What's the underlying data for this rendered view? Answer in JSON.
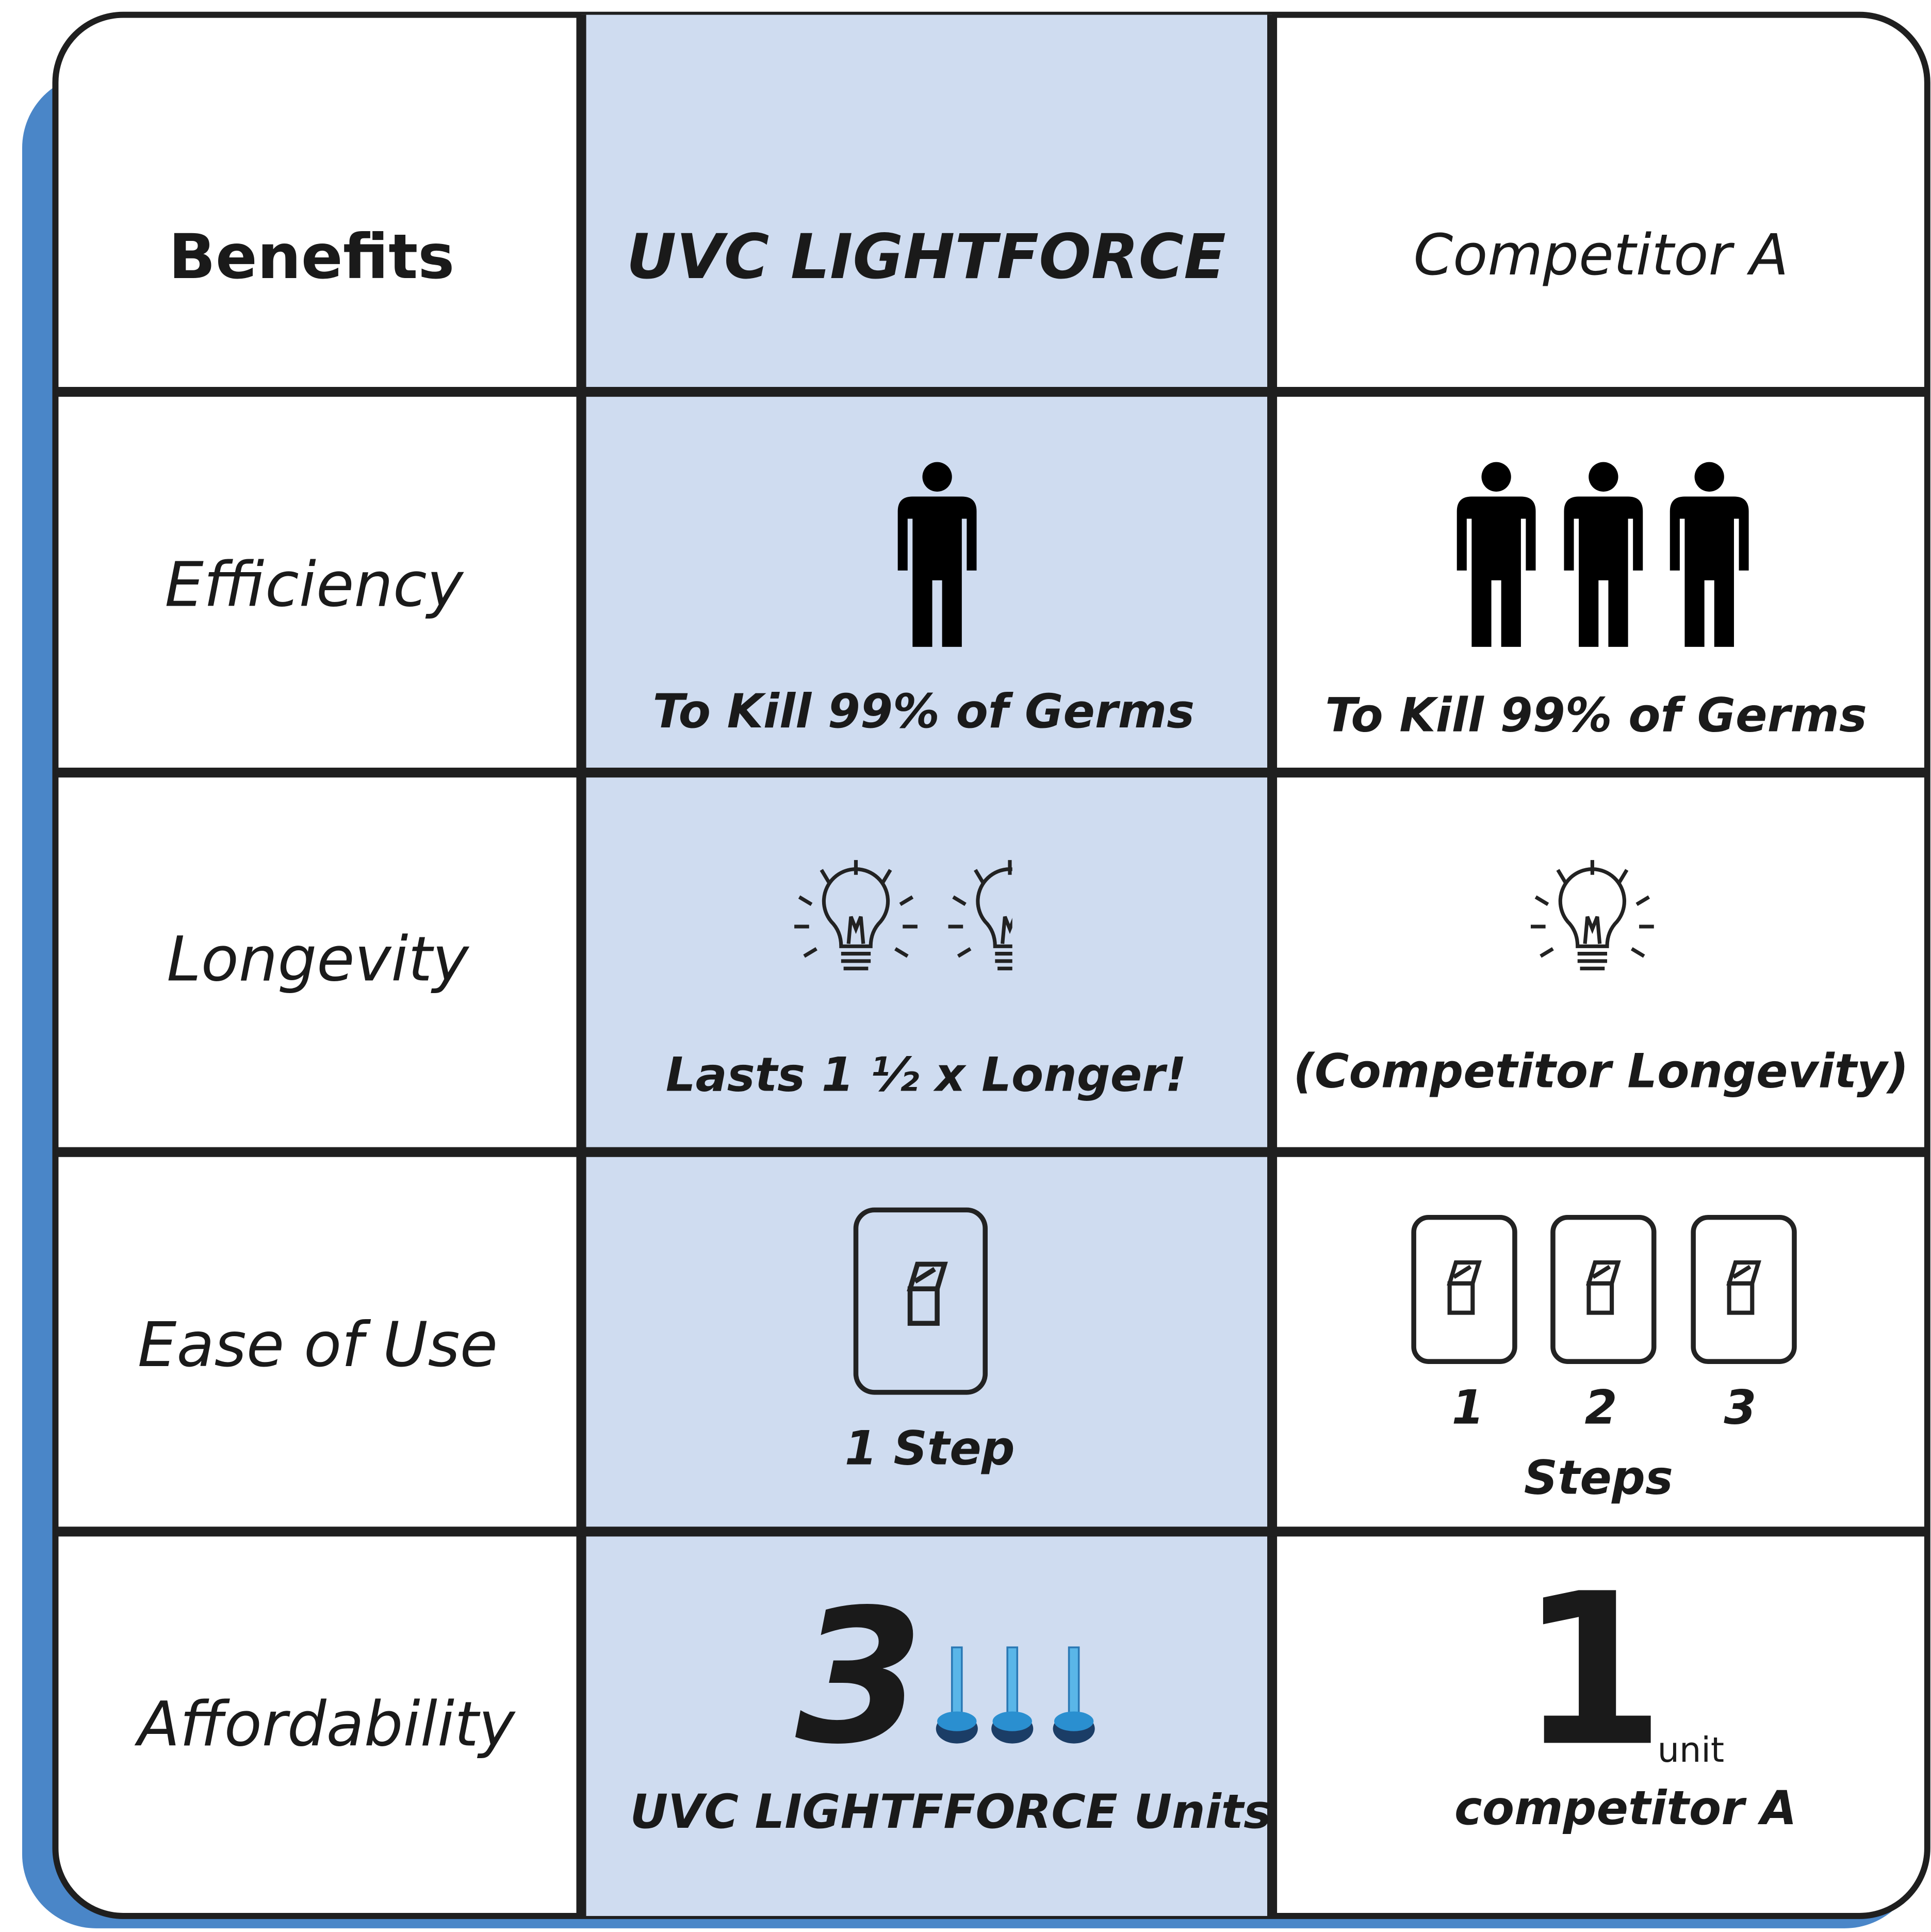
{
  "table": {
    "header": [
      "Benefits",
      "UVC LIGHTFORCE",
      "Competitor A"
    ],
    "rows": [
      {
        "label": "Efficiency",
        "product": {
          "caption": "To Kill 99% of Germs"
        },
        "competitor": {
          "caption": "To Kill 99% of Germs"
        }
      },
      {
        "label": "Longevity",
        "product": {
          "caption": "Lasts 1 ½ x Longer!"
        },
        "competitor": {
          "caption": "(Competitor Longevity)"
        }
      },
      {
        "label": "Ease of Use",
        "product": {
          "caption": "1 Step"
        },
        "competitor": {
          "step_numbers": [
            "1",
            "2",
            "3"
          ],
          "caption": "Steps"
        }
      },
      {
        "label": "Affordability",
        "product": {
          "count": "3",
          "caption": "UVC LIGHTFFORCE Units"
        },
        "competitor": {
          "count": "1",
          "unit": "unit",
          "caption": "competitor A"
        }
      }
    ]
  }
}
